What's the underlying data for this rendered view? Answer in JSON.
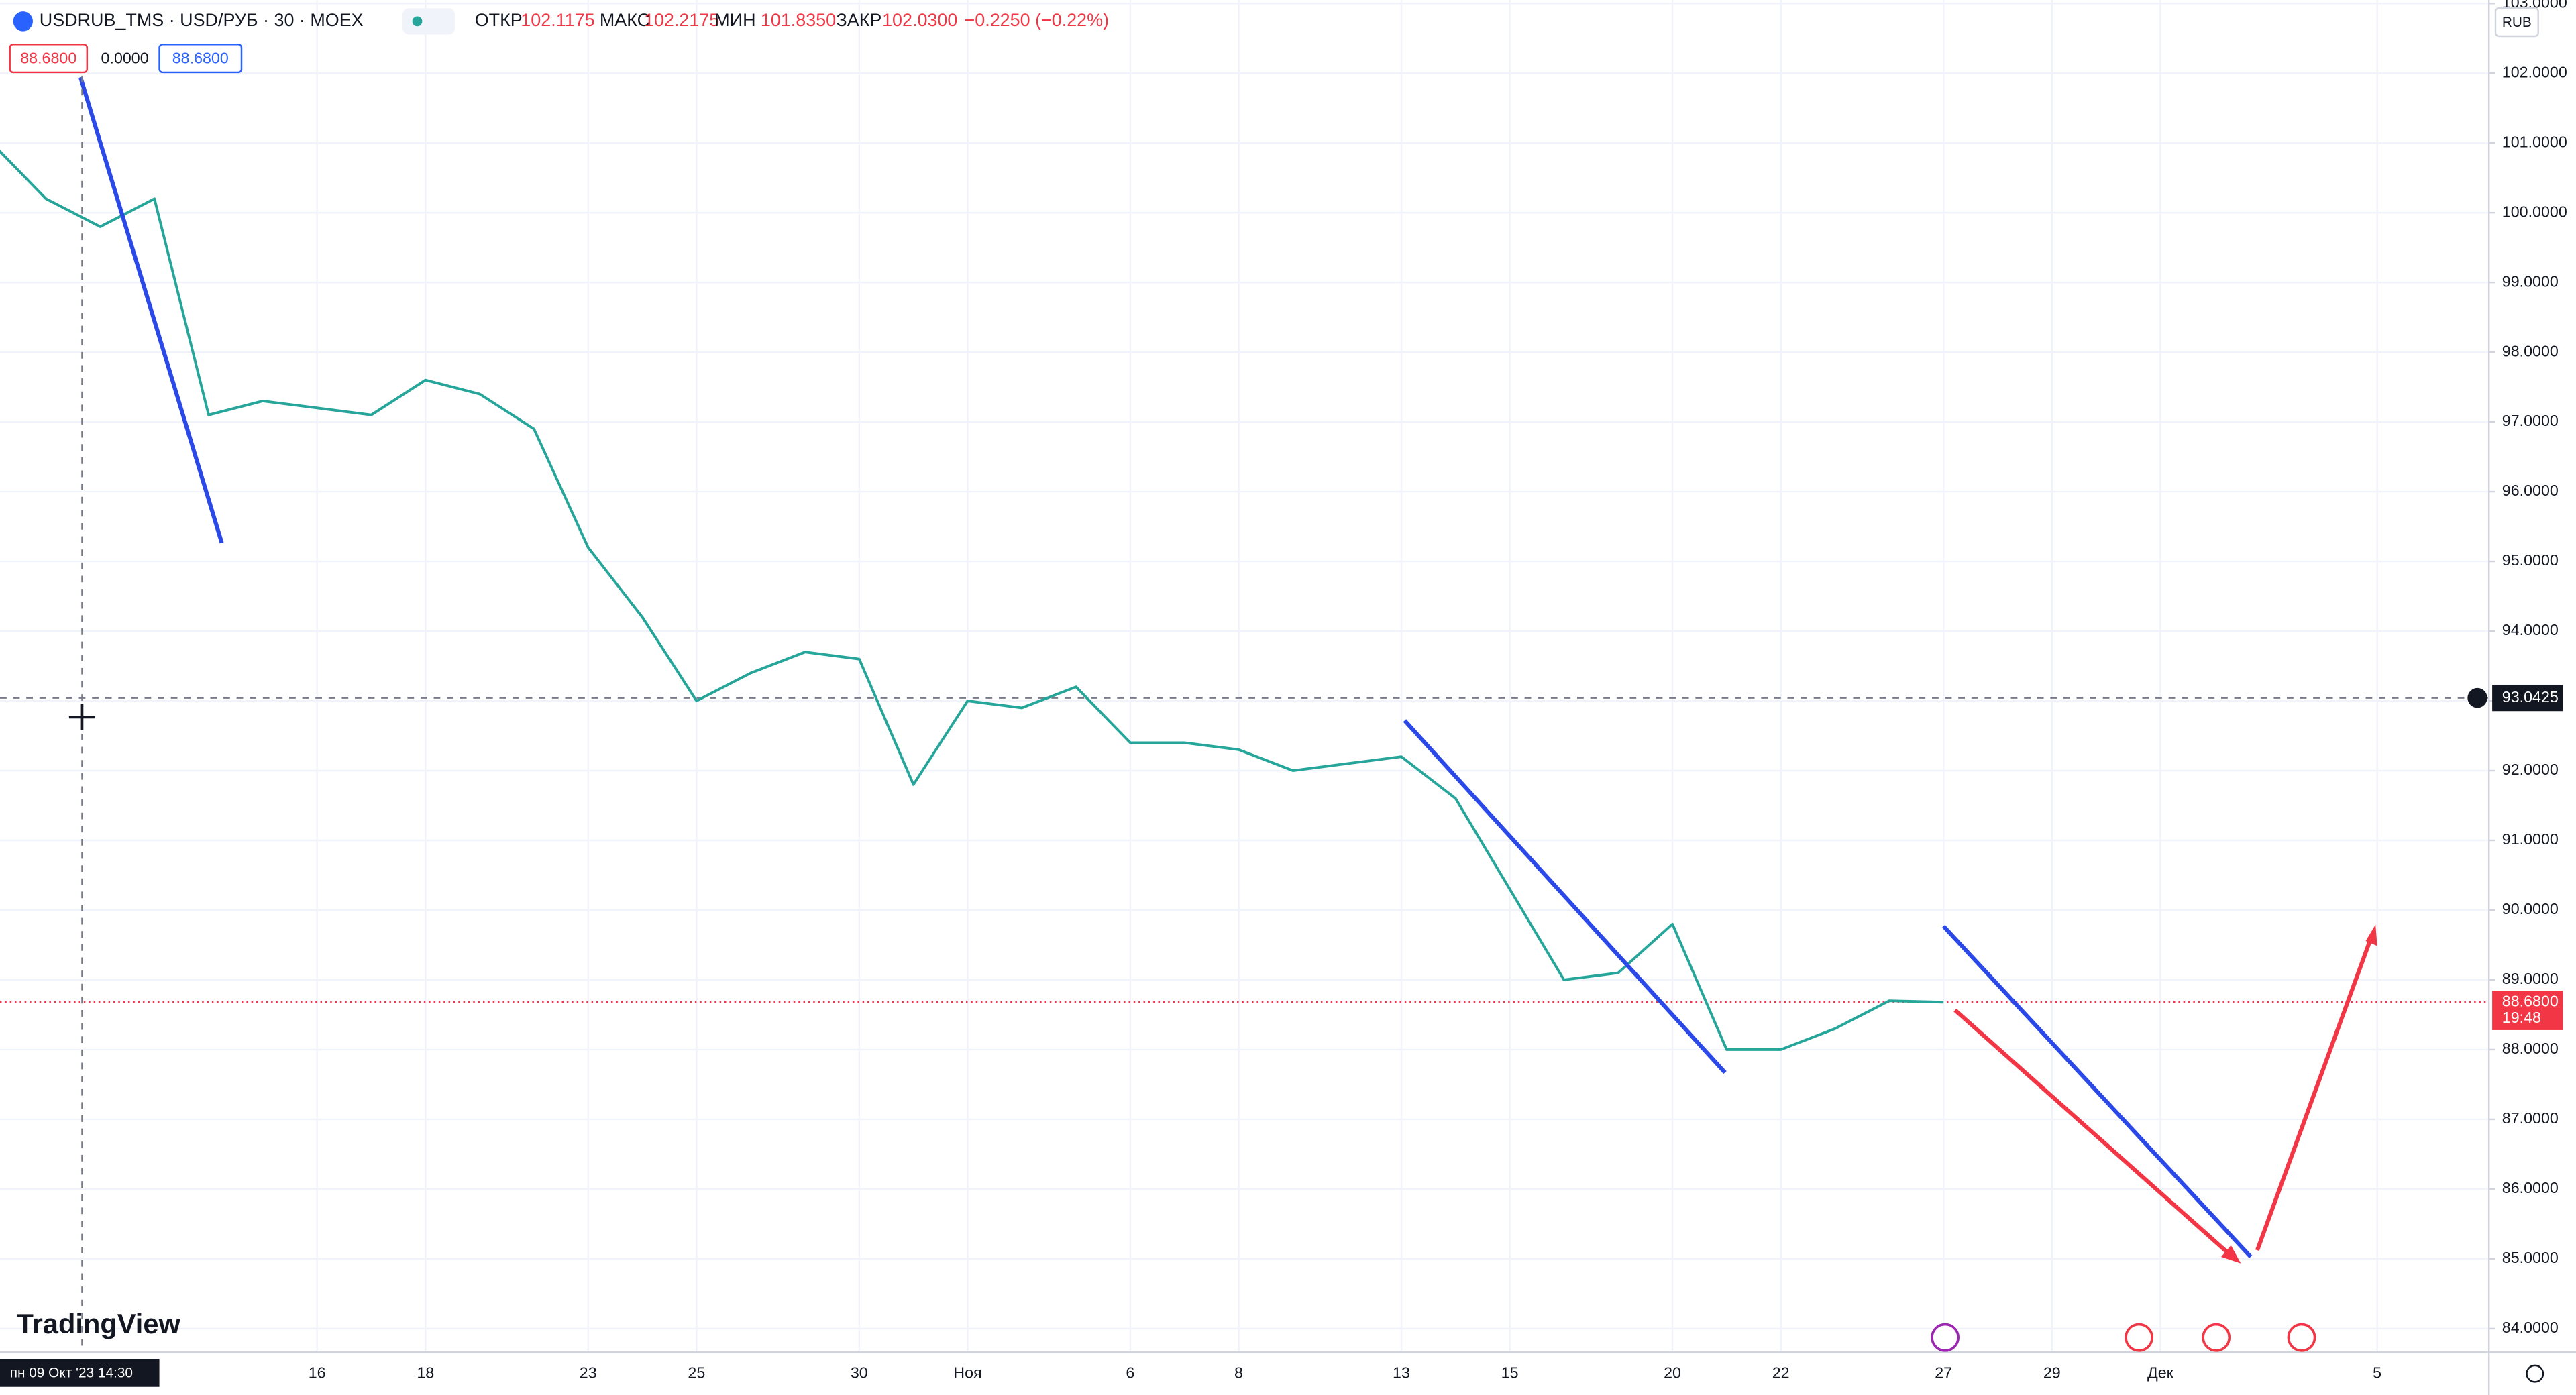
{
  "header": {
    "symbol": "USDRUB_TMS · USD/РУБ · 30 · MOEX",
    "open_label": "ОТКР",
    "open": "102.1175",
    "high_label": "МАКС",
    "high": "102.2175",
    "low_label": "МИН",
    "low": "101.8350",
    "close_label": "ЗАКР",
    "close": "102.0300",
    "change": "−0.2250 (−0.22%)",
    "tool_values": [
      "88.6800",
      "0.0000",
      "88.6800"
    ],
    "currency": "RUB",
    "crosshair_time": "пн 09 Окт '23  14:30",
    "logo": "TradingView"
  },
  "chart_data": {
    "type": "line",
    "categories": [
      null,
      null,
      null,
      null,
      null,
      null,
      "16",
      null,
      "18",
      null,
      null,
      "23",
      null,
      "25",
      null,
      null,
      "30",
      null,
      "Ноя",
      null,
      null,
      "6",
      null,
      "8",
      null,
      null,
      "13",
      null,
      "15",
      null,
      null,
      "20",
      null,
      "22",
      null,
      null,
      "27",
      null,
      "29",
      null,
      "Дек",
      null,
      null,
      null,
      "5"
    ],
    "series": [
      {
        "name": "USDRUB_TMS",
        "color": "#26a69a",
        "values": [
          101.0,
          100.2,
          99.8,
          100.2,
          97.1,
          97.3,
          97.2,
          97.1,
          97.6,
          97.4,
          96.9,
          95.2,
          94.2,
          93.0,
          93.4,
          93.7,
          93.6,
          91.8,
          93.0,
          92.9,
          93.2,
          92.4,
          92.4,
          92.3,
          92.0,
          92.1,
          92.2,
          91.6,
          90.3,
          89.0,
          89.1,
          89.8,
          88.0,
          88.0,
          88.3,
          88.7,
          88.68,
          null,
          null,
          null,
          null,
          null,
          null,
          null,
          null
        ]
      }
    ],
    "ylim": [
      83.66,
      103.05
    ],
    "yticks": [
      {
        "value": 84,
        "label": "84.0000"
      },
      {
        "value": 85,
        "label": "85.0000"
      },
      {
        "value": 86,
        "label": "86.0000"
      },
      {
        "value": 87,
        "label": "87.0000"
      },
      {
        "value": 88,
        "label": "88.0000"
      },
      {
        "value": 89,
        "label": "89.0000"
      },
      {
        "value": 90,
        "label": "90.0000"
      },
      {
        "value": 91,
        "label": "91.0000"
      },
      {
        "value": 92,
        "label": "92.0000"
      },
      {
        "value": 93,
        "label": "93.0000"
      },
      {
        "value": 94,
        "label": "94.0000"
      },
      {
        "value": 95,
        "label": "95.0000"
      },
      {
        "value": 96,
        "label": "96.0000"
      },
      {
        "value": 97,
        "label": "97.0000"
      },
      {
        "value": 98,
        "label": "98.0000"
      },
      {
        "value": 99,
        "label": "99.0000"
      },
      {
        "value": 100,
        "label": "100.0000"
      },
      {
        "value": 101,
        "label": "101.0000"
      },
      {
        "value": 102,
        "label": "102.0000"
      },
      {
        "value": 103,
        "label": "103.0000"
      }
    ],
    "grid": true,
    "crosshair_price": {
      "value": 93.0425,
      "label": "93.0425"
    },
    "last_price": {
      "value": 88.68,
      "label": "88.6800",
      "countdown": "19:48"
    }
  }
}
